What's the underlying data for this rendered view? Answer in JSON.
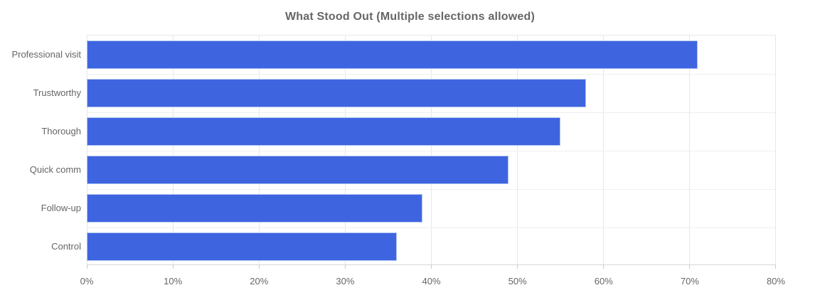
{
  "chart_data": {
    "type": "bar",
    "orientation": "horizontal",
    "title": "What Stood Out (Multiple selections allowed)",
    "categories": [
      "Professional visit",
      "Trustworthy",
      "Thorough",
      "Quick comm",
      "Follow-up",
      "Control"
    ],
    "values": [
      71,
      58,
      55,
      49,
      39,
      36
    ],
    "value_unit": "%",
    "xlabel": "",
    "ylabel": "",
    "xlim": [
      0,
      80
    ],
    "x_ticks": [
      "0%",
      "10%",
      "20%",
      "30%",
      "40%",
      "50%",
      "60%",
      "70%",
      "80%"
    ],
    "grid": true,
    "legend": false,
    "colors": {
      "bar_fill": "#3E64E0",
      "bar_edge": "#AEC4F2",
      "title_text": "#666666",
      "axis_text": "#666666",
      "gridline": "#E7E7E7",
      "row_separator": "#EFEFEF",
      "axis_line": "#D6D6D6",
      "background": "#FFFFFF"
    }
  }
}
